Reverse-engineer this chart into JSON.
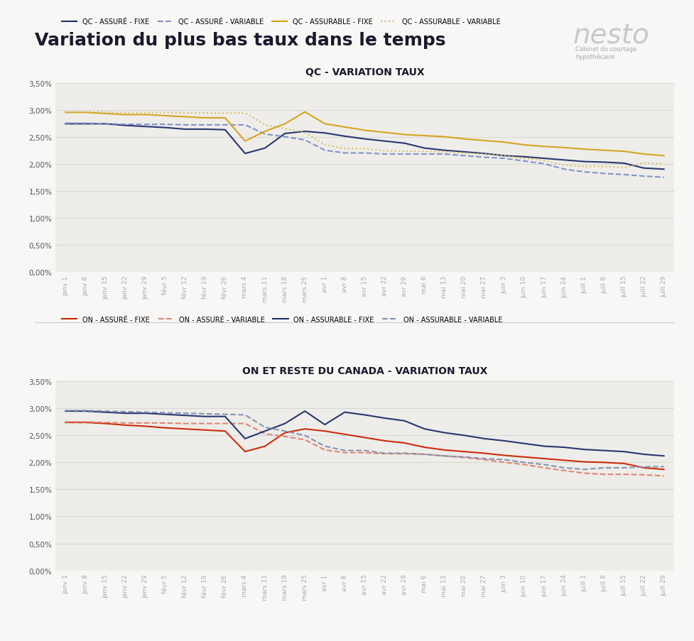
{
  "title": "Variation du plus bas taux dans le temps",
  "nesto_text": "nesto",
  "nesto_sub": "Cabinet du courtage\nhypothécaire",
  "chart1_title": "QC - VARIATION TAUX",
  "chart2_title": "ON ET RESTE DU CANADA - VARIATION TAUX",
  "x_labels": [
    "janv 1",
    "janv 8",
    "janv 15",
    "janv 22",
    "janv 29",
    "févr 5",
    "févr 12",
    "févr 19",
    "févr 26",
    "mars 4",
    "mars 11",
    "mars 18",
    "mars 25",
    "avr 1",
    "avr 8",
    "avr 15",
    "avr 22",
    "avr 29",
    "mai 6",
    "mai 13",
    "mai 20",
    "mai 27",
    "juin 3",
    "juin 10",
    "juin 17",
    "juin 24",
    "juill 1",
    "juill 8",
    "juill 15",
    "juill 22",
    "juill 29"
  ],
  "qc_assure_fixe": [
    2.74,
    2.74,
    2.74,
    2.71,
    2.69,
    2.67,
    2.64,
    2.64,
    2.63,
    2.19,
    2.29,
    2.56,
    2.6,
    2.57,
    2.51,
    2.46,
    2.42,
    2.38,
    2.29,
    2.25,
    2.22,
    2.19,
    2.15,
    2.13,
    2.1,
    2.07,
    2.04,
    2.03,
    2.01,
    1.92,
    1.9
  ],
  "qc_assure_variable": [
    2.75,
    2.75,
    2.74,
    2.73,
    2.73,
    2.73,
    2.72,
    2.72,
    2.72,
    2.72,
    2.55,
    2.5,
    2.44,
    2.25,
    2.2,
    2.2,
    2.18,
    2.18,
    2.18,
    2.18,
    2.15,
    2.12,
    2.1,
    2.05,
    2.0,
    1.9,
    1.85,
    1.82,
    1.8,
    1.77,
    1.75
  ],
  "qc_assurable_fixe": [
    2.95,
    2.95,
    2.93,
    2.91,
    2.91,
    2.89,
    2.87,
    2.85,
    2.85,
    2.42,
    2.6,
    2.74,
    2.96,
    2.74,
    2.68,
    2.62,
    2.58,
    2.54,
    2.52,
    2.5,
    2.46,
    2.43,
    2.4,
    2.35,
    2.32,
    2.3,
    2.27,
    2.25,
    2.23,
    2.18,
    2.15
  ],
  "qc_assurable_variable": [
    2.96,
    2.96,
    2.96,
    2.95,
    2.95,
    2.95,
    2.94,
    2.94,
    2.94,
    2.94,
    2.72,
    2.65,
    2.58,
    2.35,
    2.28,
    2.28,
    2.24,
    2.23,
    2.23,
    2.22,
    2.2,
    2.18,
    2.15,
    2.1,
    2.06,
    1.97,
    1.95,
    1.95,
    1.93,
    2.02,
    2.0
  ],
  "on_assure_fixe": [
    2.74,
    2.74,
    2.72,
    2.69,
    2.67,
    2.64,
    2.62,
    2.6,
    2.58,
    2.2,
    2.3,
    2.55,
    2.62,
    2.58,
    2.52,
    2.46,
    2.4,
    2.36,
    2.28,
    2.23,
    2.2,
    2.17,
    2.13,
    2.1,
    2.07,
    2.04,
    2.01,
    2.0,
    1.98,
    1.9,
    1.87
  ],
  "on_assure_variable": [
    2.75,
    2.75,
    2.74,
    2.73,
    2.73,
    2.73,
    2.72,
    2.72,
    2.72,
    2.72,
    2.53,
    2.48,
    2.42,
    2.23,
    2.18,
    2.18,
    2.16,
    2.16,
    2.15,
    2.12,
    2.09,
    2.05,
    2.0,
    1.96,
    1.9,
    1.85,
    1.8,
    1.78,
    1.78,
    1.77,
    1.75
  ],
  "on_assurable_fixe": [
    2.95,
    2.95,
    2.93,
    2.91,
    2.91,
    2.89,
    2.87,
    2.85,
    2.85,
    2.44,
    2.58,
    2.72,
    2.95,
    2.7,
    2.93,
    2.88,
    2.82,
    2.77,
    2.62,
    2.55,
    2.5,
    2.44,
    2.4,
    2.35,
    2.3,
    2.28,
    2.24,
    2.22,
    2.2,
    2.15,
    2.12
  ],
  "on_assurable_variable": [
    2.96,
    2.96,
    2.95,
    2.94,
    2.93,
    2.92,
    2.91,
    2.9,
    2.89,
    2.88,
    2.65,
    2.58,
    2.5,
    2.3,
    2.22,
    2.22,
    2.17,
    2.17,
    2.15,
    2.12,
    2.1,
    2.07,
    2.05,
    2.0,
    1.96,
    1.9,
    1.87,
    1.9,
    1.9,
    1.92,
    1.92
  ],
  "colors": {
    "qc_assure_fixe": "#1e2d6b",
    "qc_assure_variable": "#7c8fc7",
    "qc_assurable_fixe": "#d4a017",
    "qc_assurable_variable": "#d4c060",
    "on_assure_fixe": "#cc2200",
    "on_assure_variable": "#e08070",
    "on_assurable_fixe": "#1e2d6b",
    "on_assurable_variable": "#8090b0"
  },
  "background_color": "#f8f7f5",
  "chart_bg": "#eeede9"
}
